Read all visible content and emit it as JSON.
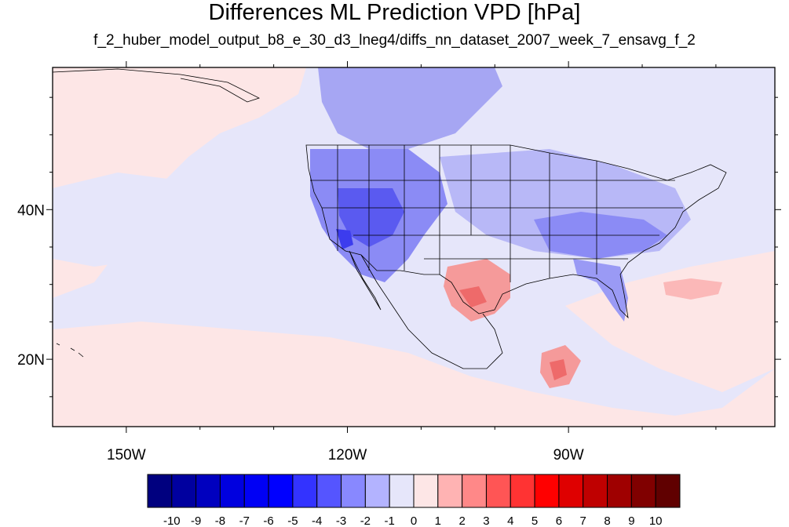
{
  "title": "Differences ML Prediction VPD [hPa]",
  "subtitle": "f_2_huber_model_output_b8_e_30_d3_lneg4/diffs_nn_dataset_2007_week_7_ensavg_f_2",
  "map": {
    "lon_range": [
      -160,
      -62
    ],
    "lat_range": [
      11,
      59
    ],
    "lon_ticks": [
      {
        "value": -150,
        "label": "150W"
      },
      {
        "value": -120,
        "label": "120W"
      },
      {
        "value": -90,
        "label": "90W"
      }
    ],
    "lat_ticks": [
      {
        "value": 40,
        "label": "40N"
      },
      {
        "value": 20,
        "label": "20N"
      }
    ],
    "background_fill": "#e6e6fa",
    "regions": [
      {
        "name": "western-us-negative",
        "level": -2,
        "color": "#8b8bf5"
      },
      {
        "name": "great-basin-strong-negative",
        "level": -3,
        "color": "#5a5af0"
      },
      {
        "name": "california-coast-negative",
        "level": -4,
        "color": "#3c3cee"
      },
      {
        "name": "canada-negative",
        "level": -2,
        "color": "#a6a6f3"
      },
      {
        "name": "midwest-negative",
        "level": -1,
        "color": "#b8b8f7"
      },
      {
        "name": "southeast-negative",
        "level": -2,
        "color": "#9a9af5"
      },
      {
        "name": "texas-positive",
        "level": 2,
        "color": "#f59a9a"
      },
      {
        "name": "gulf-positive",
        "level": 3,
        "color": "#ee6a6a"
      },
      {
        "name": "pacific-positive",
        "level": 0.5,
        "color": "#fde6e6"
      },
      {
        "name": "atlantic-positive",
        "level": 1,
        "color": "#fbb8b8"
      }
    ]
  },
  "colorbar": {
    "labels": [
      "-10",
      "-9",
      "-8",
      "-7",
      "-6",
      "-5",
      "-4",
      "-3",
      "-2",
      "-1",
      "0",
      "1",
      "2",
      "3",
      "4",
      "5",
      "6",
      "7",
      "8",
      "9",
      "10"
    ],
    "colors": [
      "#00007f",
      "#00009f",
      "#0000bf",
      "#0000df",
      "#0000f5",
      "#0000ff",
      "#3333ff",
      "#5555ff",
      "#8888ff",
      "#b3b3ff",
      "#e6e6fa",
      "#fde6e6",
      "#ffb3b3",
      "#ff8888",
      "#ff5555",
      "#ff3333",
      "#ff0000",
      "#df0000",
      "#bf0000",
      "#9f0000",
      "#800000",
      "#600000"
    ]
  }
}
